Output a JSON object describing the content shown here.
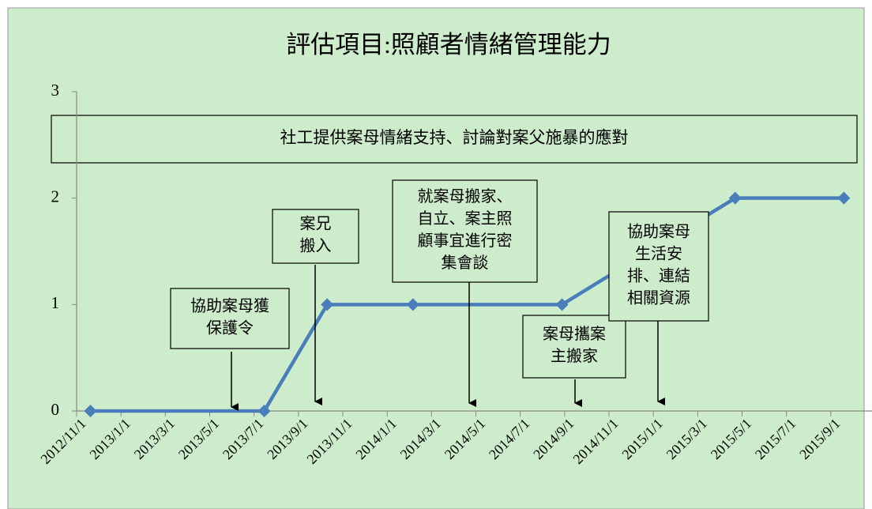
{
  "chart_data": {
    "type": "line",
    "title": "評估項目:照顧者情緒管理能力",
    "banner": "社工提供案母情緒支持、討論對案父施暴的應對",
    "x": [
      "2012/11/20",
      "2013/7/15",
      "2013/10/10",
      "2014/2/6",
      "2014/8/28",
      "2015/4/22",
      "2015/9/19"
    ],
    "series": [
      {
        "name": "照顧者情緒管理能力",
        "color": "#4a7ebb",
        "values": [
          0,
          0,
          1,
          1,
          1,
          2,
          2
        ]
      }
    ],
    "xlim": [
      "2012/11/1",
      "2015/11/1"
    ],
    "xticks": [
      "2012/11/1",
      "2013/1/1",
      "2013/3/1",
      "2013/5/1",
      "2013/7/1",
      "2013/9/1",
      "2013/11/1",
      "2014/1/1",
      "2014/3/1",
      "2014/5/1",
      "2014/7/1",
      "2014/9/1",
      "2014/11/1",
      "2015/1/1",
      "2015/3/1",
      "2015/5/1",
      "2015/7/1",
      "2015/9/1"
    ],
    "ylim": [
      0,
      3
    ],
    "yticks": [
      0,
      1,
      2,
      3
    ],
    "annotations": [
      [
        "協助案母獲",
        "保護令"
      ],
      [
        "案兄",
        "搬入"
      ],
      [
        "就案母搬家、",
        "自立、案主照",
        "顧事宜進行密",
        "集會談"
      ],
      [
        "案母攜案",
        "主搬家"
      ],
      [
        "協助案母",
        "生活安",
        "排、連結",
        "相關資源"
      ]
    ]
  }
}
